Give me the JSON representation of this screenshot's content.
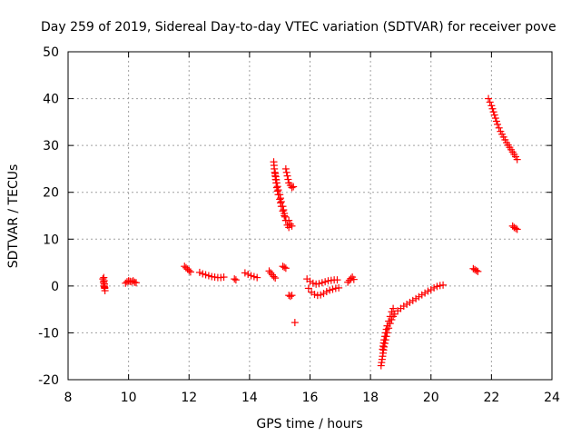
{
  "chart_data": {
    "type": "scatter",
    "title": "Day 259 of 2019, Sidereal Day-to-day VTEC variation (SDTVAR) for receiver pove",
    "xlabel": "GPS time / hours",
    "ylabel": "SDTVAR / TECUs",
    "xlim": [
      8,
      24
    ],
    "ylim": [
      -20,
      50
    ],
    "xticks": [
      "8",
      "10",
      "12",
      "14",
      "16",
      "18",
      "20",
      "22",
      "24"
    ],
    "yticks": [
      "-20",
      "-10",
      "0",
      "10",
      "20",
      "30",
      "40",
      "50"
    ],
    "xtick_values": [
      8,
      10,
      12,
      14,
      16,
      18,
      20,
      22,
      24
    ],
    "ytick_values": [
      -20,
      -10,
      0,
      10,
      20,
      30,
      40,
      50
    ],
    "grid": true,
    "marker": "+",
    "marker_color": "#ff0000",
    "segments": [
      {
        "x": [
          9.15,
          9.17,
          9.19,
          9.21,
          9.22,
          9.18,
          9.2
        ],
        "y": [
          1.5,
          0.8,
          0.0,
          -0.5,
          -1.0,
          1.8,
          -0.2
        ]
      },
      {
        "x": [
          9.9,
          9.95,
          10.0,
          10.05,
          10.1,
          10.15,
          10.2,
          10.25
        ],
        "y": [
          0.6,
          0.9,
          1.1,
          1.0,
          0.9,
          1.1,
          0.8,
          0.7
        ]
      },
      {
        "x": [
          11.85,
          11.9,
          11.95,
          12.0,
          12.05
        ],
        "y": [
          4.2,
          3.9,
          3.6,
          3.3,
          3.0
        ]
      },
      {
        "x": [
          12.35,
          12.45,
          12.55,
          12.65,
          12.75,
          12.85,
          12.95,
          13.05,
          13.15
        ],
        "y": [
          2.9,
          2.6,
          2.4,
          2.2,
          2.0,
          1.9,
          1.8,
          1.8,
          1.9
        ]
      },
      {
        "x": [
          13.5,
          13.55
        ],
        "y": [
          1.5,
          1.3
        ]
      },
      {
        "x": [
          13.85,
          13.95,
          14.05,
          14.15,
          14.25
        ],
        "y": [
          2.8,
          2.5,
          2.2,
          2.0,
          1.8
        ]
      },
      {
        "x": [
          14.65,
          14.7,
          14.75,
          14.8,
          14.85
        ],
        "y": [
          3.2,
          2.8,
          2.4,
          2.0,
          1.7
        ]
      },
      {
        "x": [
          14.8,
          14.82,
          14.85,
          14.88,
          14.9,
          14.95,
          15.0,
          15.05,
          15.1,
          15.15,
          15.2,
          15.25,
          15.3
        ],
        "y": [
          26.5,
          25.0,
          23.5,
          22.0,
          21.0,
          19.5,
          18.5,
          17.0,
          16.0,
          15.0,
          14.0,
          13.0,
          12.5
        ]
      },
      {
        "x": [
          14.85,
          14.9,
          14.95,
          15.0,
          15.05,
          15.1,
          15.15,
          15.2
        ],
        "y": [
          24.0,
          22.0,
          20.5,
          19.5,
          18.0,
          17.0,
          15.5,
          14.0
        ]
      },
      {
        "x": [
          15.2,
          15.25,
          15.3,
          15.35,
          15.4,
          15.45
        ],
        "y": [
          25.0,
          23.5,
          22.0,
          21.5,
          21.0,
          21.2
        ]
      },
      {
        "x": [
          15.3,
          15.35,
          15.4
        ],
        "y": [
          14.0,
          13.2,
          12.8
        ]
      },
      {
        "x": [
          15.1,
          15.15,
          15.2
        ],
        "y": [
          4.2,
          4.0,
          3.8
        ]
      },
      {
        "x": [
          15.3,
          15.35,
          15.4
        ],
        "y": [
          -2.0,
          -2.2,
          -2.0
        ]
      },
      {
        "x": [
          15.5
        ],
        "y": [
          -7.8
        ]
      },
      {
        "x": [
          15.9,
          16.0,
          16.1,
          16.2,
          16.3,
          16.4,
          16.5,
          16.6,
          16.7,
          16.8,
          16.9
        ],
        "y": [
          1.5,
          1.0,
          0.6,
          0.4,
          0.5,
          0.7,
          0.9,
          1.1,
          1.2,
          1.3,
          1.3
        ]
      },
      {
        "x": [
          15.95,
          16.05,
          16.15,
          16.25,
          16.35,
          16.45,
          16.55,
          16.65,
          16.75,
          16.85,
          16.95
        ],
        "y": [
          -0.5,
          -1.3,
          -1.8,
          -2.0,
          -1.9,
          -1.6,
          -1.2,
          -0.9,
          -0.7,
          -0.5,
          -0.4
        ]
      },
      {
        "x": [
          17.25,
          17.3,
          17.35,
          17.4,
          17.45
        ],
        "y": [
          0.8,
          1.2,
          1.6,
          1.9,
          1.4
        ]
      },
      {
        "x": [
          18.35,
          18.4,
          18.45,
          18.5,
          18.55,
          18.6,
          18.65,
          18.7,
          18.75,
          18.8,
          18.9,
          19.0,
          19.1,
          19.2,
          19.3,
          19.4,
          19.5,
          19.6,
          19.7,
          19.8,
          19.9,
          20.0,
          20.1,
          20.2,
          20.3,
          20.4
        ],
        "y": [
          -17.0,
          -15.0,
          -13.0,
          -11.5,
          -10.0,
          -9.0,
          -8.0,
          -7.2,
          -6.5,
          -6.0,
          -5.3,
          -4.8,
          -4.3,
          -3.9,
          -3.5,
          -3.1,
          -2.7,
          -2.3,
          -1.9,
          -1.5,
          -1.1,
          -0.8,
          -0.4,
          -0.1,
          0.1,
          0.2
        ]
      },
      {
        "x": [
          18.4,
          18.45,
          18.5,
          18.55,
          18.6,
          18.65,
          18.7,
          18.75
        ],
        "y": [
          -13.5,
          -11.5,
          -10.0,
          -8.5,
          -7.5,
          -6.5,
          -5.5,
          -4.8
        ]
      },
      {
        "x": [
          21.4,
          21.45,
          21.5,
          21.55
        ],
        "y": [
          3.7,
          3.5,
          3.3,
          3.1
        ]
      },
      {
        "x": [
          21.9,
          22.0,
          22.1,
          22.2,
          22.3,
          22.4,
          22.5,
          22.6,
          22.7,
          22.8,
          22.85
        ],
        "y": [
          40.0,
          38.5,
          36.5,
          34.5,
          33.0,
          31.8,
          30.6,
          29.6,
          28.6,
          27.6,
          27.0
        ]
      },
      {
        "x": [
          22.7,
          22.75,
          22.8,
          22.85
        ],
        "y": [
          12.8,
          12.5,
          12.3,
          12.1
        ]
      }
    ]
  }
}
